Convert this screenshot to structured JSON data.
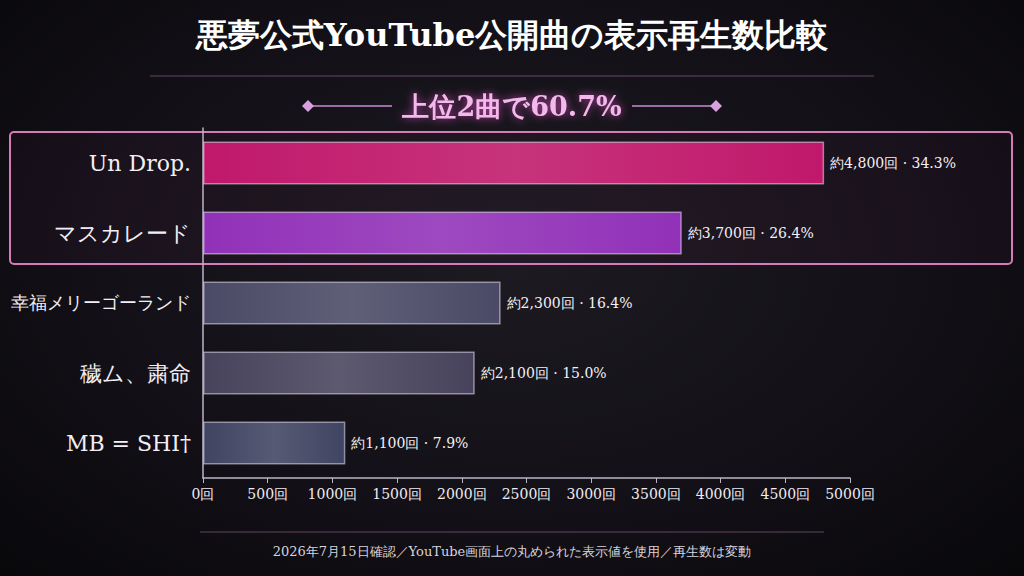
{
  "chart_data": {
    "type": "bar",
    "orientation": "horizontal",
    "title": "悪夢公式YouTube公開曲の表示再生数比較",
    "subtitle": "上位2曲で60.7%",
    "annotations": [
      "2026年7月15日確認／YouTube画面上の丸められた表示値を使用／再生数は変動"
    ],
    "categories": [
      "Un Drop.",
      "マスカレード",
      "幸福メリーゴーランド",
      "穢ム、粛命",
      "MB = SHI†"
    ],
    "values": [
      4800,
      3700,
      2300,
      2100,
      1100
    ],
    "value_labels": [
      "約4,800回 · 34.3%",
      "約3,700回 · 26.4%",
      "約2,300回 · 16.4%",
      "約2,100回 · 15.0%",
      "約1,100回 · 7.9%"
    ],
    "colors": [
      "#c0186b",
      "#9131b8",
      "#4b4a66",
      "#47435c",
      "#3f4462"
    ],
    "data_labels": true,
    "grid": false,
    "xlim": [
      0,
      5000
    ],
    "xticks": [
      {
        "value": 0,
        "label": "0回"
      },
      {
        "value": 500,
        "label": "500回"
      },
      {
        "value": 1000,
        "label": "1000回"
      },
      {
        "value": 1500,
        "label": "1500回"
      },
      {
        "value": 2000,
        "label": "2000回"
      },
      {
        "value": 2500,
        "label": "2500回"
      },
      {
        "value": 3000,
        "label": "3000回"
      },
      {
        "value": 3500,
        "label": "3500回"
      },
      {
        "value": 4000,
        "label": "4000回"
      },
      {
        "value": 4500,
        "label": "4500回"
      },
      {
        "value": 5000,
        "label": "5000回"
      }
    ]
  }
}
